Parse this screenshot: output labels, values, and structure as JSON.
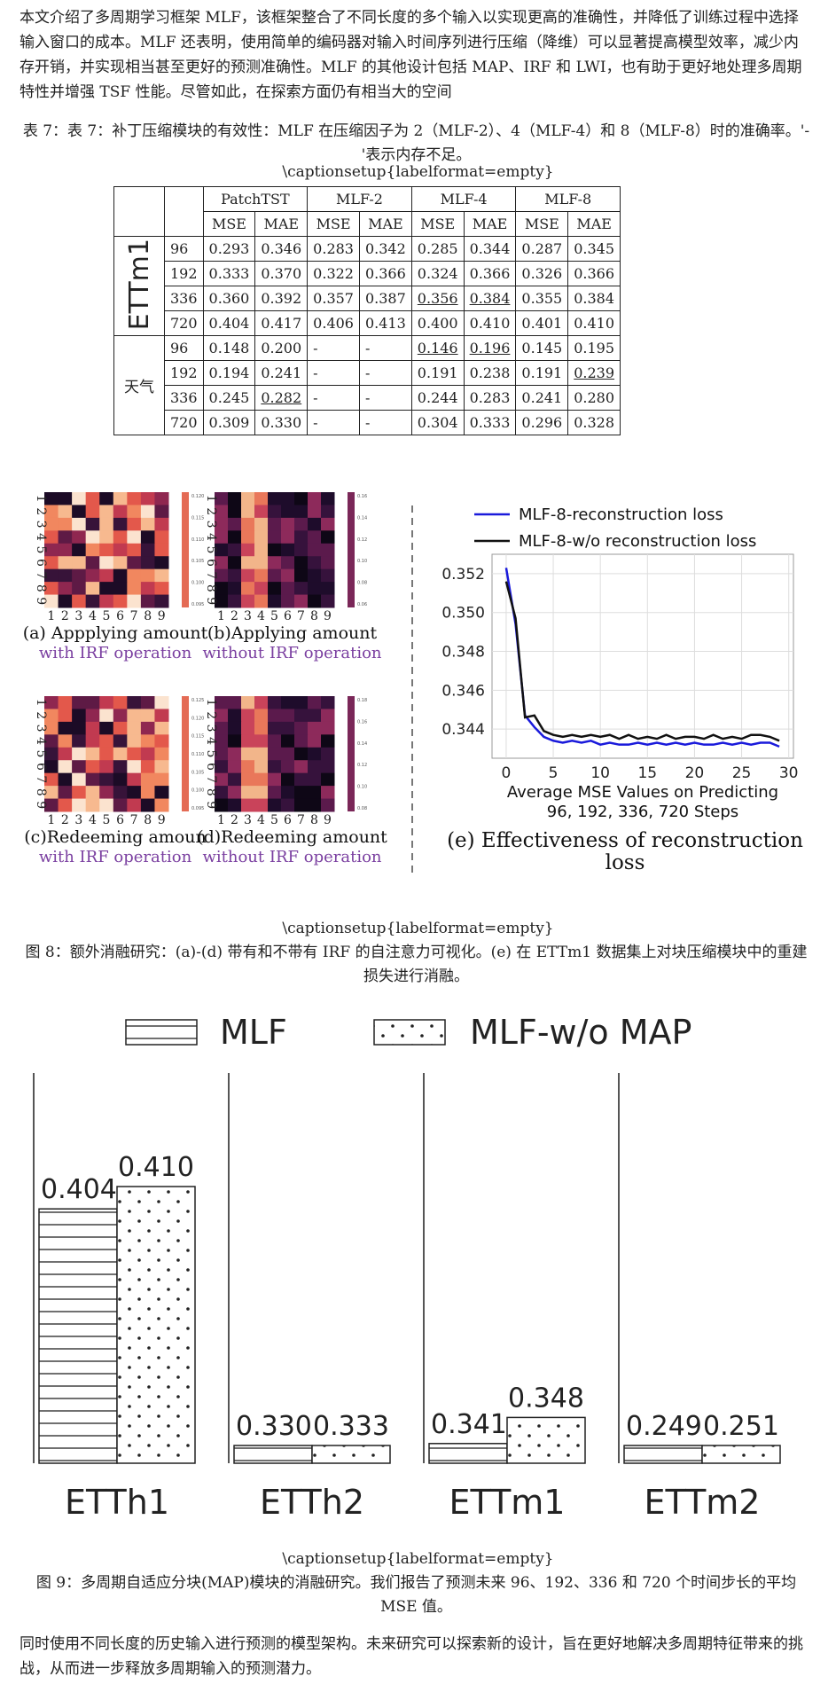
{
  "intro_text": "本文介绍了多周期学习框架 MLF，该框架整合了不同长度的多个输入以实现更高的准确性，并降低了训练过程中选择输入窗口的成本。MLF 还表明，使用简单的编码器对输入时间序列进行压缩（降维）可以显著提高模型效率，减少内存开销，并实现相当甚至更好的预测准确性。MLF 的其他设计包括 MAP、IRF 和 LWI，也有助于更好地处理多周期特性并增强 TSF 性能。尽管如此，在探索方面仍有相当大的空间",
  "table7": {
    "caption": "表 7：表 7：补丁压缩模块的有效性：MLF 在压缩因子为 2（MLF-2）、4（MLF-4）和 8（MLF-8）时的准确率。'-'表示内存不足。",
    "captionsetup": "\\captionsetup{labelformat=empty}",
    "models": [
      "PatchTST",
      "MLF-2",
      "MLF-4",
      "MLF-8"
    ],
    "metrics": [
      "MSE",
      "MAE"
    ],
    "groups": [
      {
        "dataset": "ETTm1",
        "rows": [
          {
            "horizon": "96",
            "values": [
              "0.293",
              "0.346",
              "0.283",
              "0.342",
              "0.285",
              "0.344",
              "0.287",
              "0.345"
            ],
            "underline": [
              false,
              false,
              false,
              false,
              false,
              false,
              false,
              false
            ]
          },
          {
            "horizon": "192",
            "values": [
              "0.333",
              "0.370",
              "0.322",
              "0.366",
              "0.324",
              "0.366",
              "0.326",
              "0.366"
            ],
            "underline": [
              false,
              false,
              false,
              false,
              false,
              false,
              false,
              false
            ]
          },
          {
            "horizon": "336",
            "values": [
              "0.360",
              "0.392",
              "0.357",
              "0.387",
              "0.356",
              "0.384",
              "0.355",
              "0.384"
            ],
            "underline": [
              false,
              false,
              false,
              false,
              true,
              true,
              false,
              false
            ]
          },
          {
            "horizon": "720",
            "values": [
              "0.404",
              "0.417",
              "0.406",
              "0.413",
              "0.400",
              "0.410",
              "0.401",
              "0.410"
            ],
            "underline": [
              false,
              false,
              false,
              false,
              false,
              false,
              false,
              false
            ]
          }
        ]
      },
      {
        "dataset": "天气",
        "rows": [
          {
            "horizon": "96",
            "values": [
              "0.148",
              "0.200",
              "-",
              "-",
              "0.146",
              "0.196",
              "0.145",
              "0.195"
            ],
            "underline": [
              false,
              false,
              false,
              false,
              true,
              true,
              false,
              false
            ]
          },
          {
            "horizon": "192",
            "values": [
              "0.194",
              "0.241",
              "-",
              "-",
              "0.191",
              "0.238",
              "0.191",
              "0.239"
            ],
            "underline": [
              false,
              false,
              false,
              false,
              false,
              false,
              false,
              true
            ]
          },
          {
            "horizon": "336",
            "values": [
              "0.245",
              "0.282",
              "-",
              "-",
              "0.244",
              "0.283",
              "0.241",
              "0.280"
            ],
            "underline": [
              false,
              true,
              false,
              false,
              false,
              false,
              false,
              false
            ]
          },
          {
            "horizon": "720",
            "values": [
              "0.309",
              "0.330",
              "-",
              "-",
              "0.304",
              "0.333",
              "0.296",
              "0.328"
            ],
            "underline": [
              false,
              false,
              false,
              false,
              false,
              false,
              false,
              false
            ]
          }
        ]
      }
    ]
  },
  "figure8": {
    "heatmap_ticks": [
      "1",
      "2",
      "3",
      "4",
      "5",
      "6",
      "7",
      "8",
      "9"
    ],
    "panels": [
      {
        "label": "(a) Appplying amount",
        "sub": "with IRF operation",
        "colorbar": [
          "0.120",
          "0.115",
          "0.110",
          "0.105",
          "0.100",
          "0.095"
        ]
      },
      {
        "label": "(b)Applying amount",
        "sub": "without IRF operation",
        "colorbar": [
          "0.16",
          "0.14",
          "0.12",
          "0.10",
          "0.08",
          "0.06"
        ]
      },
      {
        "label": "(c)Redeeming amoun",
        "sub": "with IRF operation",
        "colorbar": [
          "0.125",
          "0.120",
          "0.115",
          "0.110",
          "0.105",
          "0.100",
          "0.095"
        ]
      },
      {
        "label": "(d)Redeeming amount",
        "sub": "without IRF operation",
        "colorbar": [
          "0.18",
          "0.16",
          "0.14",
          "0.12",
          "0.10",
          "0.08"
        ]
      }
    ],
    "panel_e_label": "(e) Effectiveness of reconstruction loss",
    "captionsetup": "\\captionsetup{labelformat=empty}",
    "caption": "图 8：额外消融研究：(a)-(d) 带有和不带有 IRF 的自注意力可视化。(e) 在 ETTm1 数据集上对块压缩模块中的重建损失进行消融。"
  },
  "figure9": {
    "captionsetup": "\\captionsetup{labelformat=empty}",
    "caption": "图 9：多周期自适应分块(MAP)模块的消融研究。我们报告了预测未来 96、192、336 和 720 个时间步长的平均 MSE 值。"
  },
  "outro_text": "同时使用不同长度的历史输入进行预测的模型架构。未来研究可以探索新的设计，旨在更好地解决多周期特征带来的挑战，从而进一步释放多周期输入的预测潜力。",
  "chart_data": [
    {
      "type": "line",
      "title": "",
      "xlabel": "Average MSE Values on Predicting 96, 192, 336, 720 Steps",
      "ylabel": "",
      "xlim": [
        -1.5,
        30.5
      ],
      "ylim": [
        0.3425,
        0.353
      ],
      "xticks": [
        0,
        5,
        10,
        15,
        20,
        25,
        30
      ],
      "yticks": [
        0.344,
        0.346,
        0.348,
        0.35,
        0.352
      ],
      "grid": true,
      "legend": "top",
      "series": [
        {
          "name": "MLF-8-reconstruction loss",
          "color": "#1a1adb",
          "x": [
            0,
            1,
            2,
            3,
            4,
            5,
            6,
            7,
            8,
            9,
            10,
            11,
            12,
            13,
            14,
            15,
            16,
            17,
            18,
            19,
            20,
            21,
            22,
            23,
            24,
            25,
            26,
            27,
            28,
            29
          ],
          "y": [
            0.3523,
            0.3494,
            0.3447,
            0.3441,
            0.3436,
            0.3434,
            0.3433,
            0.3434,
            0.3433,
            0.3434,
            0.3432,
            0.3433,
            0.3432,
            0.3432,
            0.3433,
            0.3432,
            0.3433,
            0.3432,
            0.3433,
            0.3432,
            0.3433,
            0.3432,
            0.3432,
            0.3433,
            0.3432,
            0.3433,
            0.3432,
            0.3433,
            0.3433,
            0.3431
          ]
        },
        {
          "name": "MLF-8-w/o reconstruction loss",
          "color": "#111111",
          "x": [
            0,
            1,
            2,
            3,
            4,
            5,
            6,
            7,
            8,
            9,
            10,
            11,
            12,
            13,
            14,
            15,
            16,
            17,
            18,
            19,
            20,
            21,
            22,
            23,
            24,
            25,
            26,
            27,
            28,
            29
          ],
          "y": [
            0.3516,
            0.3497,
            0.3446,
            0.3447,
            0.3439,
            0.3437,
            0.3436,
            0.3437,
            0.3436,
            0.3437,
            0.3436,
            0.3437,
            0.3435,
            0.3437,
            0.3435,
            0.3436,
            0.3435,
            0.3437,
            0.3435,
            0.3436,
            0.3436,
            0.3435,
            0.3437,
            0.3435,
            0.3436,
            0.3435,
            0.3437,
            0.3437,
            0.3436,
            0.3434
          ]
        }
      ]
    },
    {
      "type": "bar",
      "title": "",
      "legend": "top",
      "categories": [
        "ETTh1",
        "ETTh2",
        "ETTm1",
        "ETTm2"
      ],
      "series": [
        {
          "name": "MLF",
          "pattern": "horizontal-lines",
          "values": [
            0.404,
            0.33,
            0.341,
            0.249
          ]
        },
        {
          "name": "MLF-w/o MAP",
          "pattern": "dots",
          "values": [
            0.41,
            0.333,
            0.348,
            0.251
          ]
        }
      ]
    }
  ]
}
